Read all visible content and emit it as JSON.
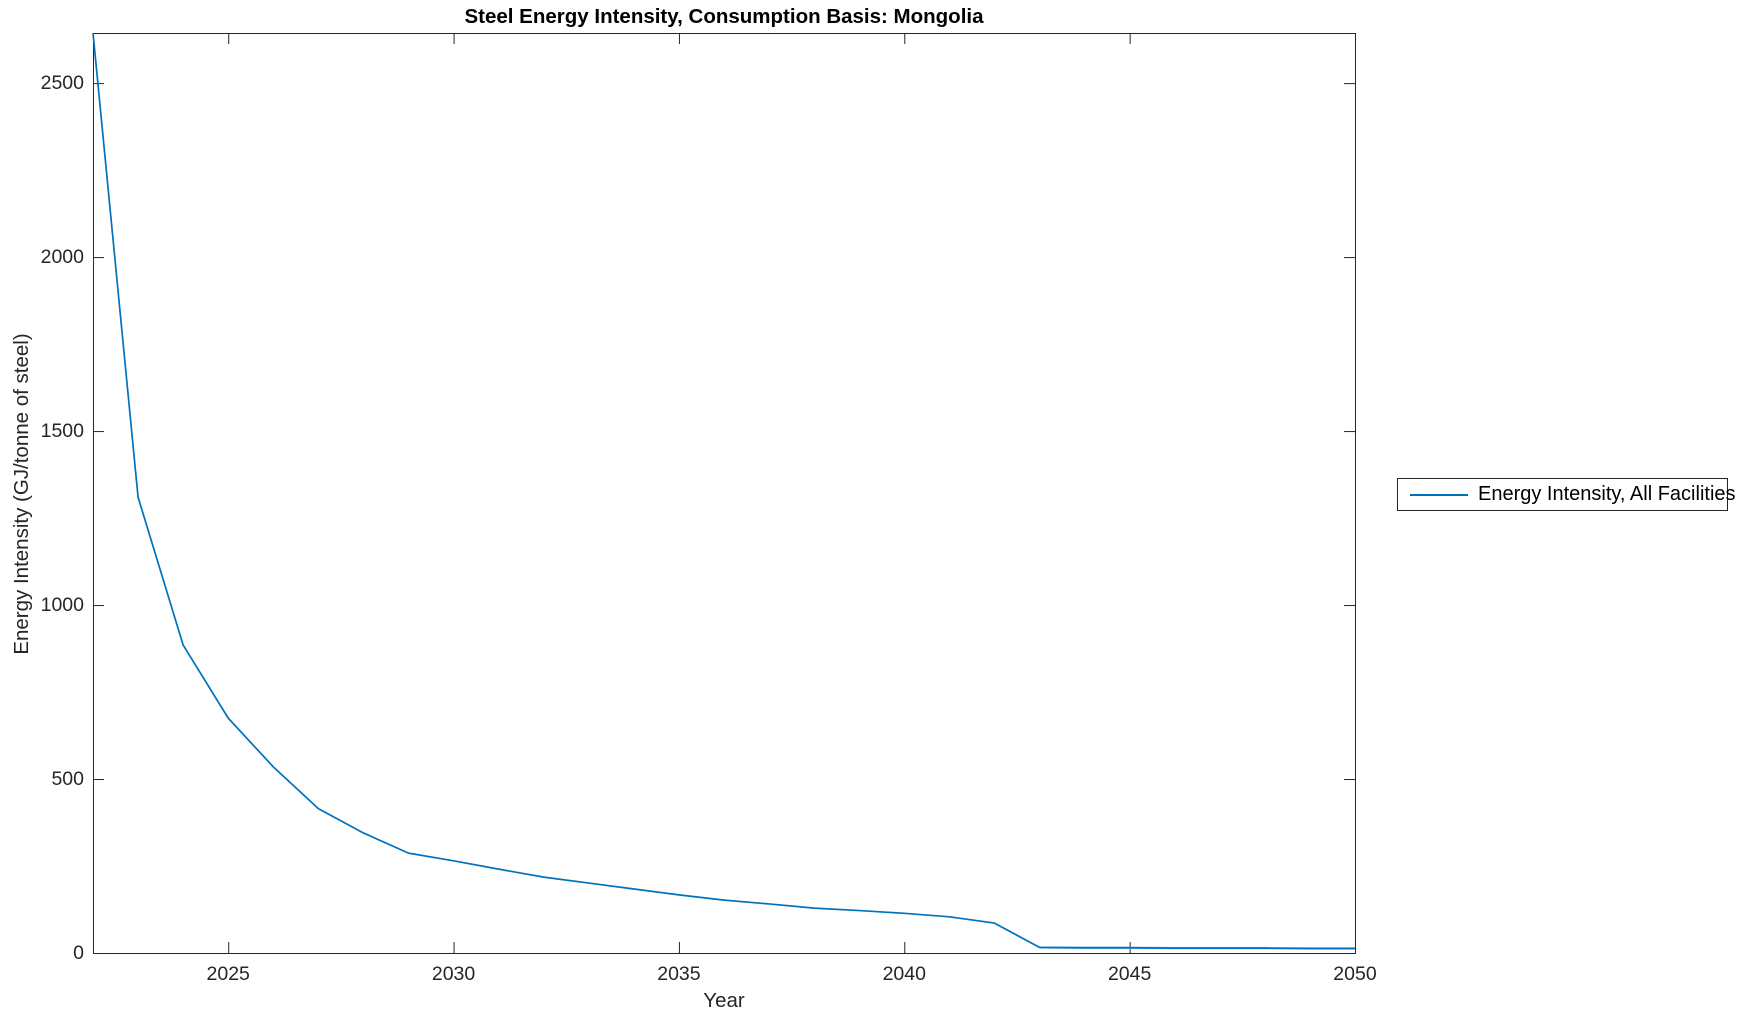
{
  "figure": {
    "title": "Steel Energy Intensity, Consumption Basis: Mongolia",
    "xlabel": "Year",
    "ylabel": "Energy Intensity (GJ/tonne of steel)",
    "legend": {
      "label": "Energy Intensity, All Facilities",
      "line_color": "#0072BD"
    },
    "colors": {
      "line": "#0072BD",
      "line_tail_light": "#8ec6e8",
      "axis": "#262626",
      "background": "#ffffff"
    }
  },
  "chart_data": {
    "type": "line",
    "title": "Steel Energy Intensity, Consumption Basis: Mongolia",
    "xlabel": "Year",
    "ylabel": "Energy Intensity (GJ/tonne of steel)",
    "x": [
      2022,
      2023,
      2024,
      2025,
      2026,
      2027,
      2028,
      2029,
      2030,
      2031,
      2032,
      2033,
      2034,
      2035,
      2036,
      2037,
      2038,
      2039,
      2040,
      2041,
      2042,
      2043,
      2044,
      2045,
      2046,
      2047,
      2048,
      2049,
      2050
    ],
    "series": [
      {
        "name": "Energy Intensity, All Facilities",
        "color": "#0072BD",
        "values": [
          2644,
          1310,
          885,
          675,
          535,
          415,
          345,
          287,
          265,
          241,
          218,
          201,
          184,
          167,
          152,
          141,
          129,
          122,
          114,
          104,
          86,
          16,
          15,
          15,
          14,
          14,
          14,
          13,
          13
        ]
      }
    ],
    "xlim": [
      2022,
      2050
    ],
    "ylim": [
      0,
      2644
    ],
    "xticks": [
      2025,
      2030,
      2035,
      2040,
      2045,
      2050
    ],
    "yticks": [
      0,
      500,
      1000,
      1500,
      2000,
      2500
    ],
    "grid": false,
    "box": true,
    "tick_direction": "in",
    "legend_position": "outside-right"
  }
}
